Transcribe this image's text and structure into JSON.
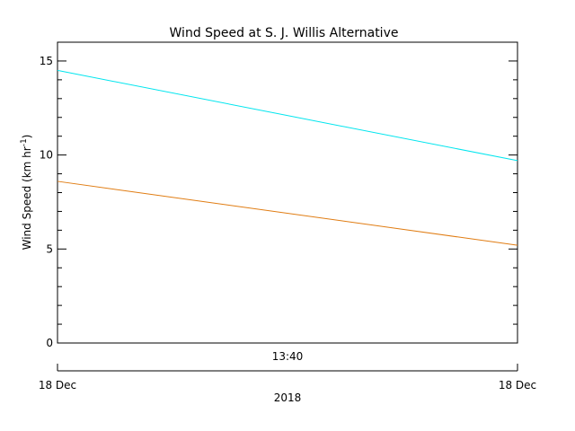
{
  "chart_data": {
    "type": "line",
    "title": "Wind Speed at S. J. Willis Alternative",
    "ylabel": "Wind Speed (km hr",
    "ylabel_superscript": "-1",
    "ylabel_close": ")",
    "ylim": [
      0,
      16
    ],
    "yticks": [
      0,
      5,
      10,
      15
    ],
    "x": [
      "13:30",
      "13:50"
    ],
    "x_tick_label": "13:40",
    "x_date_left": "18 Dec",
    "x_date_right": "18 Dec",
    "x_year_label": "2018",
    "grid": false,
    "series": [
      {
        "color": "#00e5ee",
        "values": [
          14.5,
          9.7
        ]
      },
      {
        "color": "#e07c12",
        "values": [
          8.6,
          5.2
        ]
      }
    ]
  }
}
